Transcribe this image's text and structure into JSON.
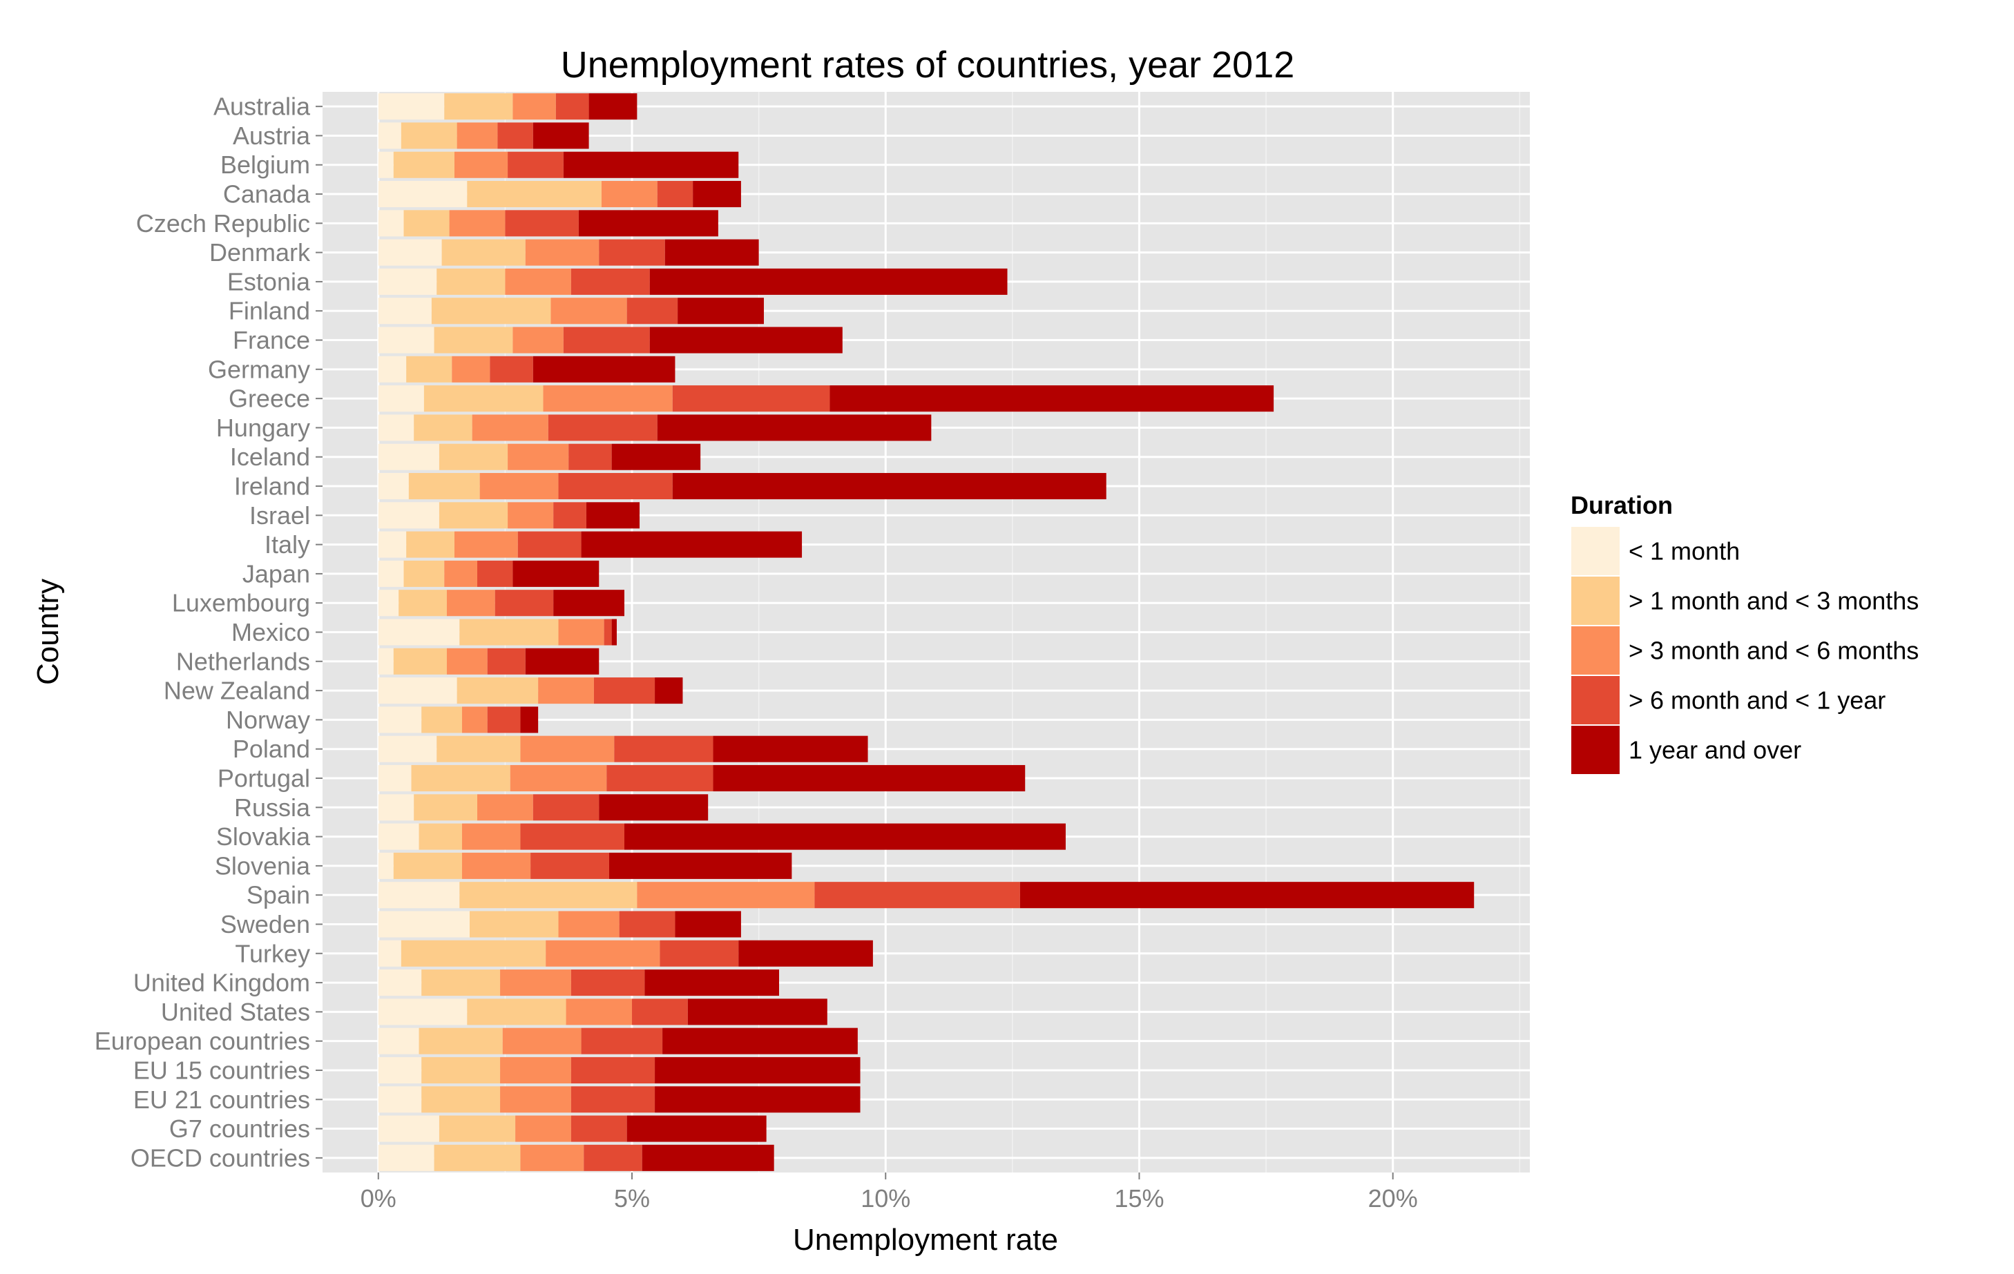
{
  "chart_data": {
    "type": "bar",
    "orientation": "horizontal",
    "stacked": true,
    "title": "Unemployment rates of countries, year 2012",
    "xlabel": "Unemployment rate",
    "ylabel": "Country",
    "xlim": [
      -0.011,
      0.227
    ],
    "x_ticks": [
      0,
      0.05,
      0.1,
      0.15,
      0.2
    ],
    "x_tick_labels": [
      "0%",
      "5%",
      "10%",
      "15%",
      "20%"
    ],
    "grid": true,
    "legend_position": "right",
    "legend_title": "Duration",
    "categories": [
      "Australia",
      "Austria",
      "Belgium",
      "Canada",
      "Czech Republic",
      "Denmark",
      "Estonia",
      "Finland",
      "France",
      "Germany",
      "Greece",
      "Hungary",
      "Iceland",
      "Ireland",
      "Israel",
      "Italy",
      "Japan",
      "Luxembourg",
      "Mexico",
      "Netherlands",
      "New Zealand",
      "Norway",
      "Poland",
      "Portugal",
      "Russia",
      "Slovakia",
      "Slovenia",
      "Spain",
      "Sweden",
      "Turkey",
      "United Kingdom",
      "United States",
      "European countries",
      "EU 15 countries",
      "EU 21 countries",
      "G7 countries",
      "OECD countries"
    ],
    "series": [
      {
        "name": "< 1 month",
        "color": "#FEF0D9",
        "values": [
          0.013,
          0.0045,
          0.003,
          0.0175,
          0.005,
          0.0125,
          0.0115,
          0.0105,
          0.011,
          0.0055,
          0.009,
          0.007,
          0.012,
          0.006,
          0.012,
          0.0055,
          0.005,
          0.004,
          0.016,
          0.003,
          0.0155,
          0.0085,
          0.0115,
          0.0065,
          0.007,
          0.008,
          0.003,
          0.016,
          0.018,
          0.0045,
          0.0085,
          0.0175,
          0.008,
          0.0085,
          0.0085,
          0.012,
          0.011
        ]
      },
      {
        "name": "> 1 month and < 3 months",
        "color": "#FDCC8A",
        "values": [
          0.0135,
          0.011,
          0.012,
          0.0265,
          0.009,
          0.0165,
          0.0135,
          0.0235,
          0.0155,
          0.009,
          0.0235,
          0.0115,
          0.0135,
          0.014,
          0.0135,
          0.0095,
          0.008,
          0.0095,
          0.0195,
          0.0105,
          0.016,
          0.008,
          0.0165,
          0.0195,
          0.0125,
          0.0085,
          0.0135,
          0.035,
          0.0175,
          0.0285,
          0.0155,
          0.0195,
          0.0165,
          0.0155,
          0.0155,
          0.015,
          0.017
        ]
      },
      {
        "name": "> 3 month and < 6 months",
        "color": "#FC8D59",
        "values": [
          0.0085,
          0.008,
          0.0105,
          0.011,
          0.011,
          0.0145,
          0.013,
          0.015,
          0.01,
          0.0075,
          0.0255,
          0.015,
          0.012,
          0.0155,
          0.009,
          0.0125,
          0.0065,
          0.0095,
          0.009,
          0.008,
          0.011,
          0.005,
          0.0185,
          0.019,
          0.011,
          0.0115,
          0.0135,
          0.035,
          0.012,
          0.0225,
          0.014,
          0.013,
          0.0155,
          0.014,
          0.014,
          0.011,
          0.0125
        ]
      },
      {
        "name": "> 6 month and < 1 year",
        "color": "#E34A33",
        "values": [
          0.0065,
          0.007,
          0.011,
          0.007,
          0.0145,
          0.013,
          0.0155,
          0.01,
          0.017,
          0.0085,
          0.031,
          0.0215,
          0.0085,
          0.0225,
          0.0065,
          0.0125,
          0.007,
          0.0115,
          0.0015,
          0.0075,
          0.012,
          0.0065,
          0.0195,
          0.021,
          0.013,
          0.0205,
          0.0155,
          0.0405,
          0.011,
          0.0155,
          0.0145,
          0.011,
          0.016,
          0.0165,
          0.0165,
          0.011,
          0.0115
        ]
      },
      {
        "name": "1 year and over",
        "color": "#B30000",
        "values": [
          0.0095,
          0.011,
          0.0345,
          0.0095,
          0.0275,
          0.0185,
          0.0705,
          0.017,
          0.038,
          0.028,
          0.0875,
          0.054,
          0.0175,
          0.0855,
          0.0105,
          0.0435,
          0.017,
          0.014,
          0.001,
          0.0145,
          0.0055,
          0.0035,
          0.0305,
          0.0615,
          0.0215,
          0.087,
          0.036,
          0.0895,
          0.013,
          0.0265,
          0.0265,
          0.0275,
          0.0385,
          0.0405,
          0.0405,
          0.0275,
          0.026
        ]
      }
    ]
  }
}
